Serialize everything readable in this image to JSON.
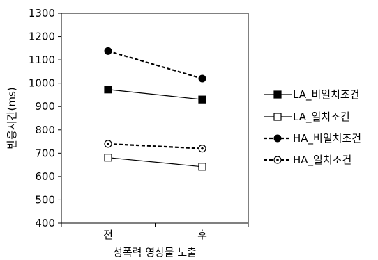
{
  "chart_data": {
    "type": "line",
    "title": "",
    "xlabel": "성폭력 영상물 노출",
    "ylabel": "반응시간(ms)",
    "categories": [
      "전",
      "후"
    ],
    "ylim": [
      400,
      1300
    ],
    "yticks": [
      400,
      500,
      600,
      700,
      800,
      900,
      1000,
      1100,
      1200,
      1300
    ],
    "grid": false,
    "legend_position": "right",
    "series": [
      {
        "name": "LA_비일치조건",
        "values": [
          973,
          930
        ],
        "marker": "square-filled",
        "line_style": "solid",
        "color": "#000000"
      },
      {
        "name": "LA_일치조건",
        "values": [
          681,
          642
        ],
        "marker": "square-open",
        "line_style": "solid",
        "color": "#000000"
      },
      {
        "name": "HA_비일치조건",
        "values": [
          1138,
          1020
        ],
        "marker": "circle-filled",
        "line_style": "dashed",
        "color": "#000000"
      },
      {
        "name": "HA_일치조건",
        "values": [
          740,
          720
        ],
        "marker": "circle-open",
        "line_style": "dashed",
        "color": "#000000"
      }
    ]
  }
}
